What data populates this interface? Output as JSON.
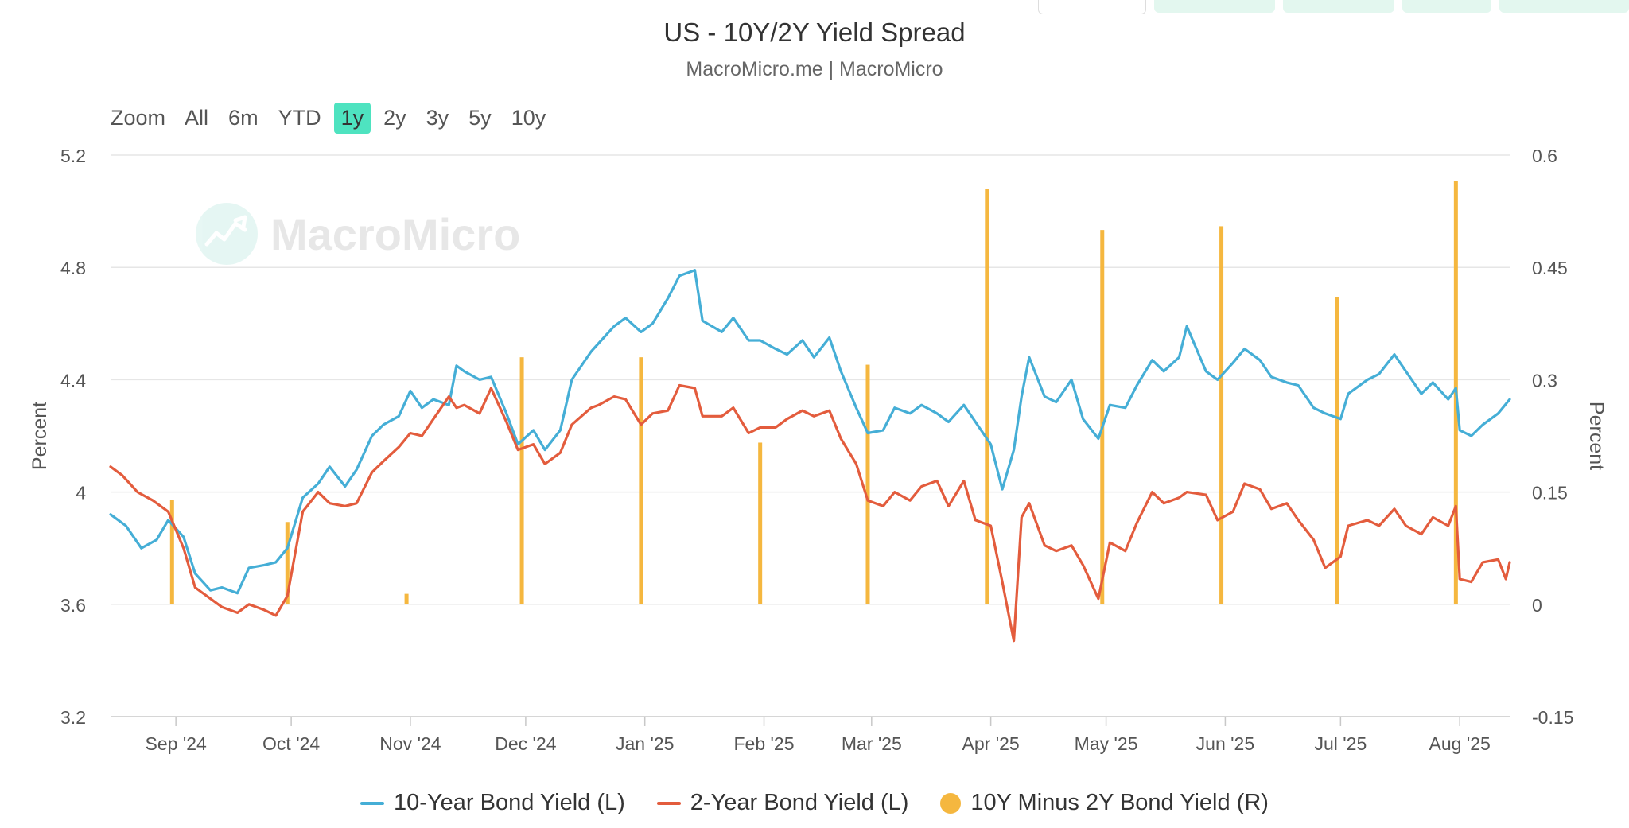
{
  "chart_data": {
    "type": "line",
    "title": "US - 10Y/2Y Yield Spread",
    "subtitle": "MacroMicro.me | MacroMicro",
    "y_left": {
      "label": "Percent",
      "ticks": [
        "5.2",
        "4.8",
        "4.4",
        "4",
        "3.6",
        "3.2"
      ],
      "range": [
        3.2,
        5.2
      ]
    },
    "y_right": {
      "label": "Percent",
      "ticks": [
        "0.6",
        "0.45",
        "0.3",
        "0.15",
        "0",
        "-0.15"
      ],
      "range": [
        -0.15,
        0.6
      ]
    },
    "x_ticks": [
      "Sep '24",
      "Oct '24",
      "Nov '24",
      "Dec '24",
      "Jan '25",
      "Feb '25",
      "Mar '25",
      "Apr '25",
      "May '25",
      "Jun '25",
      "Jul '25",
      "Aug '25"
    ],
    "x_tick_dates": [
      "2024-09-01",
      "2024-10-01",
      "2024-11-01",
      "2024-12-01",
      "2025-01-01",
      "2025-02-01",
      "2025-03-01",
      "2025-04-01",
      "2025-05-01",
      "2025-06-01",
      "2025-07-01",
      "2025-08-01"
    ],
    "x_range": [
      "2024-08-15",
      "2025-08-14"
    ],
    "grid": true,
    "legend_position": "bottom",
    "series": [
      {
        "name": "10-Year Bond Yield (L)",
        "axis": "left",
        "color": "#45aed6",
        "points": [
          [
            "2024-08-15",
            3.92
          ],
          [
            "2024-08-19",
            3.88
          ],
          [
            "2024-08-23",
            3.8
          ],
          [
            "2024-08-27",
            3.83
          ],
          [
            "2024-08-30",
            3.9
          ],
          [
            "2024-09-03",
            3.84
          ],
          [
            "2024-09-06",
            3.71
          ],
          [
            "2024-09-10",
            3.65
          ],
          [
            "2024-09-13",
            3.66
          ],
          [
            "2024-09-17",
            3.64
          ],
          [
            "2024-09-20",
            3.73
          ],
          [
            "2024-09-24",
            3.74
          ],
          [
            "2024-09-27",
            3.75
          ],
          [
            "2024-09-30",
            3.8
          ],
          [
            "2024-10-04",
            3.98
          ],
          [
            "2024-10-08",
            4.03
          ],
          [
            "2024-10-11",
            4.09
          ],
          [
            "2024-10-15",
            4.02
          ],
          [
            "2024-10-18",
            4.08
          ],
          [
            "2024-10-22",
            4.2
          ],
          [
            "2024-10-25",
            4.24
          ],
          [
            "2024-10-29",
            4.27
          ],
          [
            "2024-11-01",
            4.36
          ],
          [
            "2024-11-04",
            4.3
          ],
          [
            "2024-11-07",
            4.33
          ],
          [
            "2024-11-11",
            4.31
          ],
          [
            "2024-11-13",
            4.45
          ],
          [
            "2024-11-15",
            4.43
          ],
          [
            "2024-11-19",
            4.4
          ],
          [
            "2024-11-22",
            4.41
          ],
          [
            "2024-11-26",
            4.28
          ],
          [
            "2024-11-29",
            4.17
          ],
          [
            "2024-12-03",
            4.22
          ],
          [
            "2024-12-06",
            4.15
          ],
          [
            "2024-12-10",
            4.22
          ],
          [
            "2024-12-13",
            4.4
          ],
          [
            "2024-12-18",
            4.5
          ],
          [
            "2024-12-20",
            4.53
          ],
          [
            "2024-12-24",
            4.59
          ],
          [
            "2024-12-27",
            4.62
          ],
          [
            "2024-12-31",
            4.57
          ],
          [
            "2025-01-03",
            4.6
          ],
          [
            "2025-01-07",
            4.69
          ],
          [
            "2025-01-10",
            4.77
          ],
          [
            "2025-01-14",
            4.79
          ],
          [
            "2025-01-16",
            4.61
          ],
          [
            "2025-01-21",
            4.57
          ],
          [
            "2025-01-24",
            4.62
          ],
          [
            "2025-01-28",
            4.54
          ],
          [
            "2025-01-31",
            4.54
          ],
          [
            "2025-02-04",
            4.51
          ],
          [
            "2025-02-07",
            4.49
          ],
          [
            "2025-02-11",
            4.54
          ],
          [
            "2025-02-14",
            4.48
          ],
          [
            "2025-02-18",
            4.55
          ],
          [
            "2025-02-21",
            4.43
          ],
          [
            "2025-02-25",
            4.3
          ],
          [
            "2025-02-28",
            4.21
          ],
          [
            "2025-03-04",
            4.22
          ],
          [
            "2025-03-07",
            4.3
          ],
          [
            "2025-03-11",
            4.28
          ],
          [
            "2025-03-14",
            4.31
          ],
          [
            "2025-03-18",
            4.28
          ],
          [
            "2025-03-21",
            4.25
          ],
          [
            "2025-03-25",
            4.31
          ],
          [
            "2025-03-28",
            4.25
          ],
          [
            "2025-04-01",
            4.17
          ],
          [
            "2025-04-04",
            4.01
          ],
          [
            "2025-04-07",
            4.15
          ],
          [
            "2025-04-09",
            4.34
          ],
          [
            "2025-04-11",
            4.48
          ],
          [
            "2025-04-15",
            4.34
          ],
          [
            "2025-04-18",
            4.32
          ],
          [
            "2025-04-22",
            4.4
          ],
          [
            "2025-04-25",
            4.26
          ],
          [
            "2025-04-29",
            4.19
          ],
          [
            "2025-05-02",
            4.31
          ],
          [
            "2025-05-06",
            4.3
          ],
          [
            "2025-05-09",
            4.38
          ],
          [
            "2025-05-13",
            4.47
          ],
          [
            "2025-05-16",
            4.43
          ],
          [
            "2025-05-20",
            4.48
          ],
          [
            "2025-05-22",
            4.59
          ],
          [
            "2025-05-27",
            4.43
          ],
          [
            "2025-05-30",
            4.4
          ],
          [
            "2025-06-03",
            4.46
          ],
          [
            "2025-06-06",
            4.51
          ],
          [
            "2025-06-10",
            4.47
          ],
          [
            "2025-06-13",
            4.41
          ],
          [
            "2025-06-17",
            4.39
          ],
          [
            "2025-06-20",
            4.38
          ],
          [
            "2025-06-24",
            4.3
          ],
          [
            "2025-06-27",
            4.28
          ],
          [
            "2025-07-01",
            4.26
          ],
          [
            "2025-07-03",
            4.35
          ],
          [
            "2025-07-08",
            4.4
          ],
          [
            "2025-07-11",
            4.42
          ],
          [
            "2025-07-15",
            4.49
          ],
          [
            "2025-07-18",
            4.43
          ],
          [
            "2025-07-22",
            4.35
          ],
          [
            "2025-07-25",
            4.39
          ],
          [
            "2025-07-29",
            4.33
          ],
          [
            "2025-07-31",
            4.37
          ],
          [
            "2025-08-01",
            4.22
          ],
          [
            "2025-08-04",
            4.2
          ],
          [
            "2025-08-07",
            4.24
          ],
          [
            "2025-08-11",
            4.28
          ],
          [
            "2025-08-14",
            4.33
          ]
        ]
      },
      {
        "name": "2-Year Bond Yield (L)",
        "axis": "left",
        "color": "#e35c3d",
        "points": [
          [
            "2024-08-15",
            4.09
          ],
          [
            "2024-08-18",
            4.06
          ],
          [
            "2024-08-20",
            4.03
          ],
          [
            "2024-08-22",
            4.0
          ],
          [
            "2024-08-26",
            3.97
          ],
          [
            "2024-08-30",
            3.93
          ],
          [
            "2024-09-03",
            3.8
          ],
          [
            "2024-09-06",
            3.66
          ],
          [
            "2024-09-10",
            3.62
          ],
          [
            "2024-09-13",
            3.59
          ],
          [
            "2024-09-17",
            3.57
          ],
          [
            "2024-09-20",
            3.6
          ],
          [
            "2024-09-24",
            3.58
          ],
          [
            "2024-09-27",
            3.56
          ],
          [
            "2024-09-30",
            3.63
          ],
          [
            "2024-10-04",
            3.93
          ],
          [
            "2024-10-08",
            4.0
          ],
          [
            "2024-10-11",
            3.96
          ],
          [
            "2024-10-15",
            3.95
          ],
          [
            "2024-10-18",
            3.96
          ],
          [
            "2024-10-22",
            4.07
          ],
          [
            "2024-10-25",
            4.11
          ],
          [
            "2024-10-29",
            4.16
          ],
          [
            "2024-11-01",
            4.21
          ],
          [
            "2024-11-04",
            4.2
          ],
          [
            "2024-11-07",
            4.26
          ],
          [
            "2024-11-11",
            4.34
          ],
          [
            "2024-11-13",
            4.3
          ],
          [
            "2024-11-15",
            4.31
          ],
          [
            "2024-11-19",
            4.28
          ],
          [
            "2024-11-22",
            4.37
          ],
          [
            "2024-11-26",
            4.25
          ],
          [
            "2024-11-29",
            4.15
          ],
          [
            "2024-12-03",
            4.17
          ],
          [
            "2024-12-06",
            4.1
          ],
          [
            "2024-12-10",
            4.14
          ],
          [
            "2024-12-13",
            4.24
          ],
          [
            "2024-12-18",
            4.3
          ],
          [
            "2024-12-20",
            4.31
          ],
          [
            "2024-12-24",
            4.34
          ],
          [
            "2024-12-27",
            4.33
          ],
          [
            "2024-12-31",
            4.24
          ],
          [
            "2025-01-03",
            4.28
          ],
          [
            "2025-01-07",
            4.29
          ],
          [
            "2025-01-10",
            4.38
          ],
          [
            "2025-01-14",
            4.37
          ],
          [
            "2025-01-16",
            4.27
          ],
          [
            "2025-01-21",
            4.27
          ],
          [
            "2025-01-24",
            4.3
          ],
          [
            "2025-01-28",
            4.21
          ],
          [
            "2025-01-31",
            4.23
          ],
          [
            "2025-02-04",
            4.23
          ],
          [
            "2025-02-07",
            4.26
          ],
          [
            "2025-02-11",
            4.29
          ],
          [
            "2025-02-14",
            4.27
          ],
          [
            "2025-02-18",
            4.29
          ],
          [
            "2025-02-21",
            4.19
          ],
          [
            "2025-02-25",
            4.1
          ],
          [
            "2025-02-28",
            3.97
          ],
          [
            "2025-03-04",
            3.95
          ],
          [
            "2025-03-07",
            4.0
          ],
          [
            "2025-03-11",
            3.97
          ],
          [
            "2025-03-14",
            4.02
          ],
          [
            "2025-03-18",
            4.04
          ],
          [
            "2025-03-21",
            3.95
          ],
          [
            "2025-03-25",
            4.04
          ],
          [
            "2025-03-28",
            3.9
          ],
          [
            "2025-04-01",
            3.88
          ],
          [
            "2025-04-04",
            3.68
          ],
          [
            "2025-04-07",
            3.47
          ],
          [
            "2025-04-09",
            3.91
          ],
          [
            "2025-04-11",
            3.96
          ],
          [
            "2025-04-15",
            3.81
          ],
          [
            "2025-04-18",
            3.79
          ],
          [
            "2025-04-22",
            3.81
          ],
          [
            "2025-04-25",
            3.74
          ],
          [
            "2025-04-29",
            3.62
          ],
          [
            "2025-05-02",
            3.82
          ],
          [
            "2025-05-06",
            3.79
          ],
          [
            "2025-05-09",
            3.89
          ],
          [
            "2025-05-13",
            4.0
          ],
          [
            "2025-05-16",
            3.96
          ],
          [
            "2025-05-20",
            3.98
          ],
          [
            "2025-05-22",
            4.0
          ],
          [
            "2025-05-27",
            3.99
          ],
          [
            "2025-05-30",
            3.9
          ],
          [
            "2025-06-03",
            3.93
          ],
          [
            "2025-06-06",
            4.03
          ],
          [
            "2025-06-10",
            4.01
          ],
          [
            "2025-06-13",
            3.94
          ],
          [
            "2025-06-17",
            3.96
          ],
          [
            "2025-06-20",
            3.9
          ],
          [
            "2025-06-24",
            3.83
          ],
          [
            "2025-06-27",
            3.73
          ],
          [
            "2025-07-01",
            3.77
          ],
          [
            "2025-07-03",
            3.88
          ],
          [
            "2025-07-08",
            3.9
          ],
          [
            "2025-07-11",
            3.88
          ],
          [
            "2025-07-15",
            3.94
          ],
          [
            "2025-07-18",
            3.88
          ],
          [
            "2025-07-22",
            3.85
          ],
          [
            "2025-07-25",
            3.91
          ],
          [
            "2025-07-29",
            3.88
          ],
          [
            "2025-07-31",
            3.95
          ],
          [
            "2025-08-01",
            3.69
          ],
          [
            "2025-08-04",
            3.68
          ],
          [
            "2025-08-07",
            3.75
          ],
          [
            "2025-08-11",
            3.76
          ],
          [
            "2025-08-13",
            3.69
          ],
          [
            "2025-08-14",
            3.75
          ]
        ]
      },
      {
        "name": "10Y Minus 2Y Bond Yield (R)",
        "axis": "right",
        "type": "bar",
        "color": "#f5b73f",
        "points": [
          [
            "2024-08-31",
            0.14
          ],
          [
            "2024-09-30",
            0.11
          ],
          [
            "2024-10-31",
            0.014
          ],
          [
            "2024-11-30",
            0.33
          ],
          [
            "2024-12-31",
            0.33
          ],
          [
            "2025-01-31",
            0.216
          ],
          [
            "2025-02-28",
            0.32
          ],
          [
            "2025-03-31",
            0.555
          ],
          [
            "2025-04-30",
            0.5
          ],
          [
            "2025-05-31",
            0.505
          ],
          [
            "2025-06-30",
            0.41
          ],
          [
            "2025-07-31",
            0.565
          ]
        ]
      }
    ]
  },
  "toolbar": {
    "zoom_label": "Zoom",
    "buttons": [
      "All",
      "6m",
      "YTD",
      "1y",
      "2y",
      "3y",
      "5y",
      "10y"
    ],
    "active": "1y"
  },
  "legend": {
    "items": [
      {
        "label": "10-Year Bond Yield (L)",
        "color": "#45aed6",
        "marker": "line"
      },
      {
        "label": "2-Year Bond Yield (L)",
        "color": "#e35c3d",
        "marker": "line"
      },
      {
        "label": "10Y Minus 2Y Bond Yield (R)",
        "color": "#f5b73f",
        "marker": "dot"
      }
    ]
  },
  "watermark": {
    "text": "MacroMicro"
  }
}
